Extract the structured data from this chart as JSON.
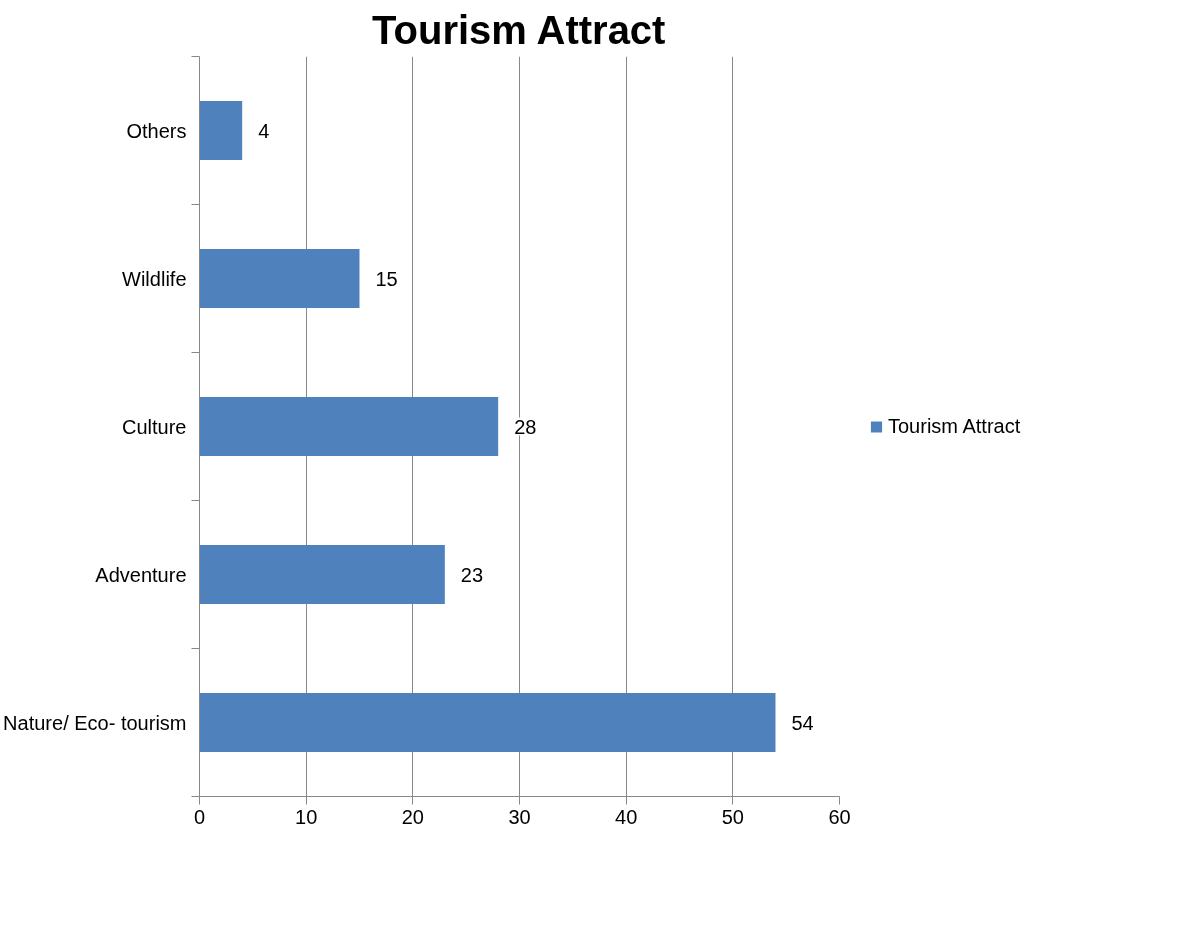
{
  "chart_data": {
    "type": "bar",
    "orientation": "horizontal",
    "title": "Tourism Attract",
    "categories": [
      "Others",
      "Wildlife",
      "Culture",
      "Adventure",
      "Nature/ Eco- tourism"
    ],
    "series": [
      {
        "name": "Tourism Attract",
        "color": "#4f81bd",
        "values": [
          4,
          15,
          28,
          23,
          54
        ]
      }
    ],
    "xlim": [
      0,
      60
    ],
    "xticks": [
      0,
      10,
      20,
      30,
      40,
      50,
      60
    ],
    "grid": "x",
    "legend": "right",
    "data_labels": true
  }
}
